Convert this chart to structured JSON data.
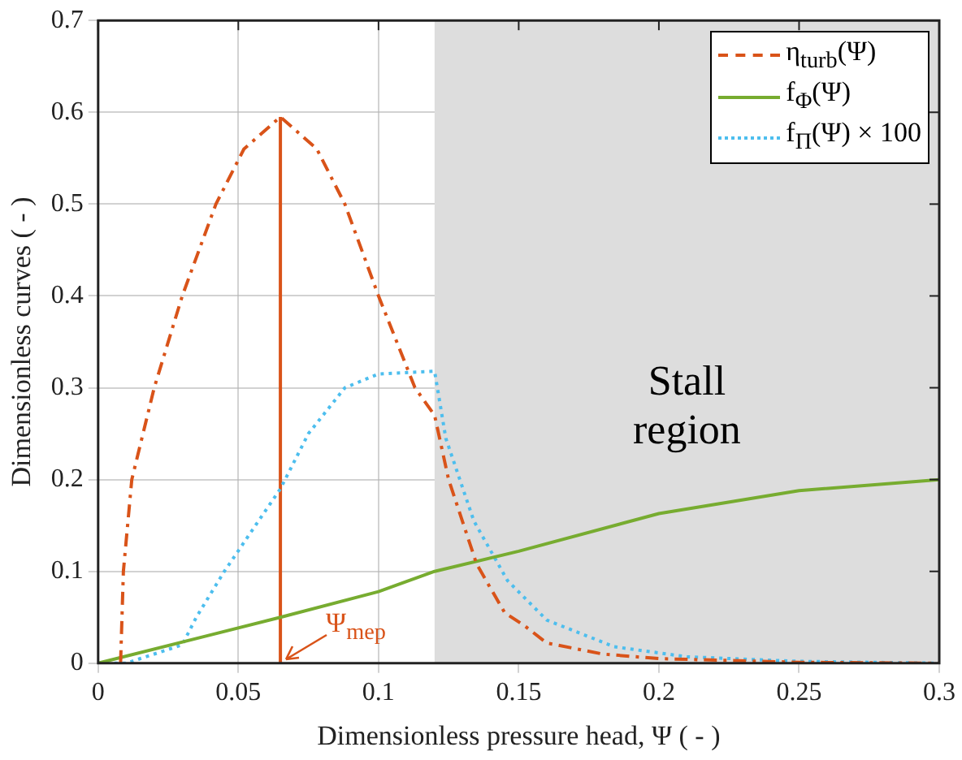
{
  "chart_data": {
    "type": "line",
    "xlabel": "Dimensionless pressure head, Ψ ( - )",
    "ylabel": "Dimensionless curves ( - )",
    "xlim": [
      0,
      0.3
    ],
    "ylim": [
      0,
      0.7
    ],
    "xticks": [
      0,
      0.05,
      0.1,
      0.15,
      0.2,
      0.25,
      0.3
    ],
    "yticks": [
      0,
      0.1,
      0.2,
      0.3,
      0.4,
      0.5,
      0.6,
      0.7
    ],
    "grid": true,
    "legend": "top right",
    "marker": "none",
    "bands": [
      {
        "axis": "x",
        "from": 0.12,
        "to": 0.3,
        "label": "Stall region",
        "color": "#dddddd"
      }
    ],
    "annotations": [
      {
        "text": "Ψ$_{mep}$",
        "x": 0.065,
        "y": 0
      }
    ],
    "series": [
      {
        "name": "η$_{turb}$(Ψ)",
        "color": "#d95319",
        "line_style": "dashed",
        "x": [
          0.008,
          0.009,
          0.012,
          0.02,
          0.03,
          0.042,
          0.052,
          0.065,
          0.078,
          0.088,
          0.1,
          0.113,
          0.12,
          0.125,
          0.135,
          0.145,
          0.152,
          0.16,
          0.18,
          0.2,
          0.25,
          0.3
        ],
        "values": [
          0,
          0.1,
          0.2,
          0.3,
          0.4,
          0.5,
          0.56,
          0.595,
          0.56,
          0.5,
          0.4,
          0.3,
          0.27,
          0.2,
          0.108,
          0.055,
          0.041,
          0.022,
          0.01,
          0.005,
          0.001,
          0
        ]
      },
      {
        "name": "f$_{Φ}$(Ψ)",
        "color": "#77ac30",
        "line_style": "solid",
        "x": [
          0,
          0.065,
          0.1,
          0.12,
          0.15,
          0.2,
          0.25,
          0.3
        ],
        "values": [
          0,
          0.05,
          0.078,
          0.1,
          0.122,
          0.163,
          0.188,
          0.2
        ]
      },
      {
        "name": "f$_{Π}$(Ψ) × 100",
        "color": "#4dbeee",
        "line_style": "dotted",
        "x": [
          0,
          0.01,
          0.03,
          0.035,
          0.045,
          0.055,
          0.065,
          0.075,
          0.088,
          0.1,
          0.12,
          0.124,
          0.134,
          0.146,
          0.16,
          0.184,
          0.21,
          0.25,
          0.3
        ],
        "values": [
          0,
          0,
          0.02,
          0.05,
          0.1,
          0.145,
          0.19,
          0.25,
          0.3,
          0.315,
          0.318,
          0.245,
          0.155,
          0.09,
          0.047,
          0.018,
          0.007,
          0.002,
          0
        ]
      },
      {
        "color": "#d95319",
        "line_style": "solid",
        "x": [
          0.065,
          0.065
        ],
        "values": [
          0,
          0.595
        ]
      }
    ]
  }
}
